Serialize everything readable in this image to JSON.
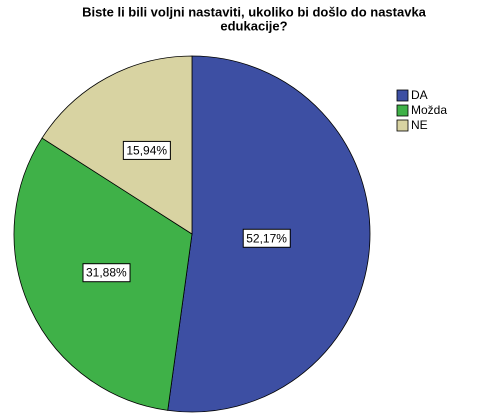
{
  "chart_data": {
    "type": "pie",
    "title": [
      "Biste li bili voljni nastaviti, ukoliko bi došlo do nastavka",
      "edukacije?"
    ],
    "categories": [
      "DA",
      "Možda",
      "NE"
    ],
    "values": [
      52.17,
      31.88,
      15.94
    ],
    "value_labels": [
      "52,17%",
      "31,88%",
      "15,94%"
    ],
    "colors": [
      "#3d4fa3",
      "#3fb148",
      "#d8d3a2"
    ],
    "legend": "right"
  }
}
